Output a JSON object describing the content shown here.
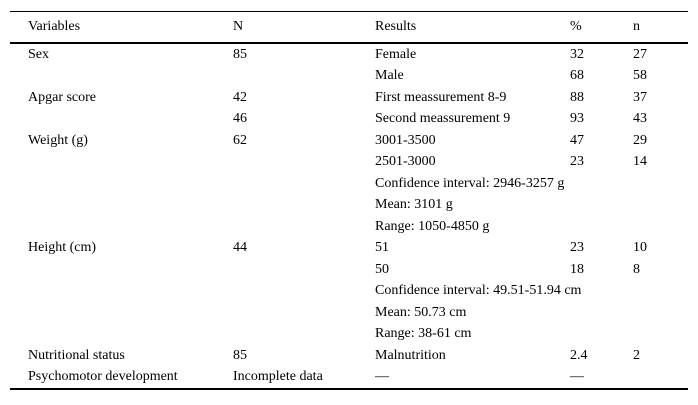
{
  "table": {
    "columns": [
      "Variables",
      "N",
      "Results",
      "%",
      "n"
    ],
    "rows": [
      {
        "variable": "Sex",
        "n_total": "85",
        "result": "Female",
        "pct": "32",
        "n": "27"
      },
      {
        "variable": "",
        "n_total": "",
        "result": "Male",
        "pct": "68",
        "n": "58"
      },
      {
        "variable": "Apgar score",
        "n_total": "42",
        "result": "First meassurement 8-9",
        "pct": "88",
        "n": "37"
      },
      {
        "variable": "",
        "n_total": "46",
        "result": "Second meassurement 9",
        "pct": "93",
        "n": "43"
      },
      {
        "variable": "Weight (g)",
        "n_total": "62",
        "result": "3001-3500",
        "pct": "47",
        "n": "29"
      },
      {
        "variable": "",
        "n_total": "",
        "result": "2501-3000",
        "pct": "23",
        "n": "14"
      },
      {
        "variable": "",
        "n_total": "",
        "result": "Confidence interval: 2946-3257 g",
        "pct": "",
        "n": ""
      },
      {
        "variable": "",
        "n_total": "",
        "result": "Mean: 3101 g",
        "pct": "",
        "n": ""
      },
      {
        "variable": "",
        "n_total": "",
        "result": "Range: 1050-4850 g",
        "pct": "",
        "n": ""
      },
      {
        "variable": "Height (cm)",
        "n_total": "44",
        "result": "51",
        "pct": "23",
        "n": "10"
      },
      {
        "variable": "",
        "n_total": "",
        "result": "50",
        "pct": "18",
        "n": "8"
      },
      {
        "variable": "",
        "n_total": "",
        "result": "Confidence interval: 49.51-51.94 cm",
        "pct": "",
        "n": ""
      },
      {
        "variable": "",
        "n_total": "",
        "result": "Mean: 50.73 cm",
        "pct": "",
        "n": ""
      },
      {
        "variable": "",
        "n_total": "",
        "result": "Range: 38-61 cm",
        "pct": "",
        "n": ""
      },
      {
        "variable": "Nutritional status",
        "n_total": "85",
        "result": "Malnutrition",
        "pct": "2.4",
        "n": "2"
      },
      {
        "variable": "Psychomotor development",
        "n_total": "Incomplete data",
        "result": "—",
        "pct": "—",
        "n": ""
      }
    ]
  }
}
